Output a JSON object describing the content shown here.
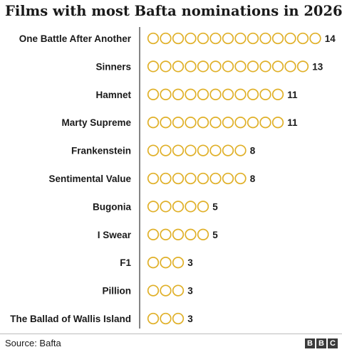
{
  "title": "Films with most Bafta nominations in 2026",
  "source": "Source: Bafta",
  "logo": [
    "B",
    "B",
    "C"
  ],
  "colors": {
    "circle": "#e0b028",
    "axis": "#333333",
    "text": "#1a1a1a"
  },
  "chart_data": {
    "type": "bar",
    "title": "Films with most Bafta nominations in 2026",
    "xlabel": "",
    "ylabel": "",
    "categories": [
      "One Battle After Another",
      "Sinners",
      "Hamnet",
      "Marty Supreme",
      "Frankenstein",
      "Sentimental Value",
      "Bugonia",
      "I Swear",
      "F1",
      "Pillion",
      "The Ballad of Wallis Island"
    ],
    "values": [
      14,
      13,
      11,
      11,
      8,
      8,
      5,
      5,
      3,
      3,
      3
    ],
    "value_labels": [
      "14",
      "13",
      "11",
      "11",
      "8",
      "8",
      "5",
      "5",
      "3",
      "3",
      "3"
    ],
    "grid": false,
    "legend": "none"
  }
}
